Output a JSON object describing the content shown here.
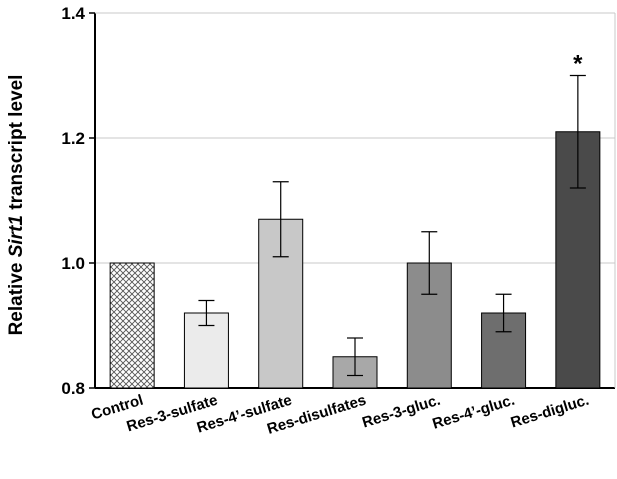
{
  "chart_data": {
    "type": "bar",
    "categories": [
      "Control",
      "Res-3-sulfate",
      "Res-4’-sulfate",
      "Res-disulfates",
      "Res-3-gluc.",
      "Res-4’-gluc.",
      "Res-digluc."
    ],
    "values": [
      1.0,
      0.92,
      1.07,
      0.85,
      1.0,
      0.92,
      1.21
    ],
    "errors": [
      0,
      0.02,
      0.06,
      0.03,
      0.05,
      0.03,
      0.09
    ],
    "colors": [
      "crosshatch",
      "#ebebeb",
      "#c8c8c8",
      "#a8a8a8",
      "#8c8c8c",
      "#6e6e6e",
      "#4a4a4a"
    ],
    "annotations": [
      "",
      "",
      "",
      "",
      "",
      "",
      "*"
    ],
    "ylabel_parts": [
      "Relative ",
      "Sirt1",
      " transcript level"
    ],
    "ylim": [
      0.8,
      1.4
    ],
    "yticks": [
      "0.8",
      "1.0",
      "1.2",
      "1.4"
    ],
    "grid": true
  }
}
